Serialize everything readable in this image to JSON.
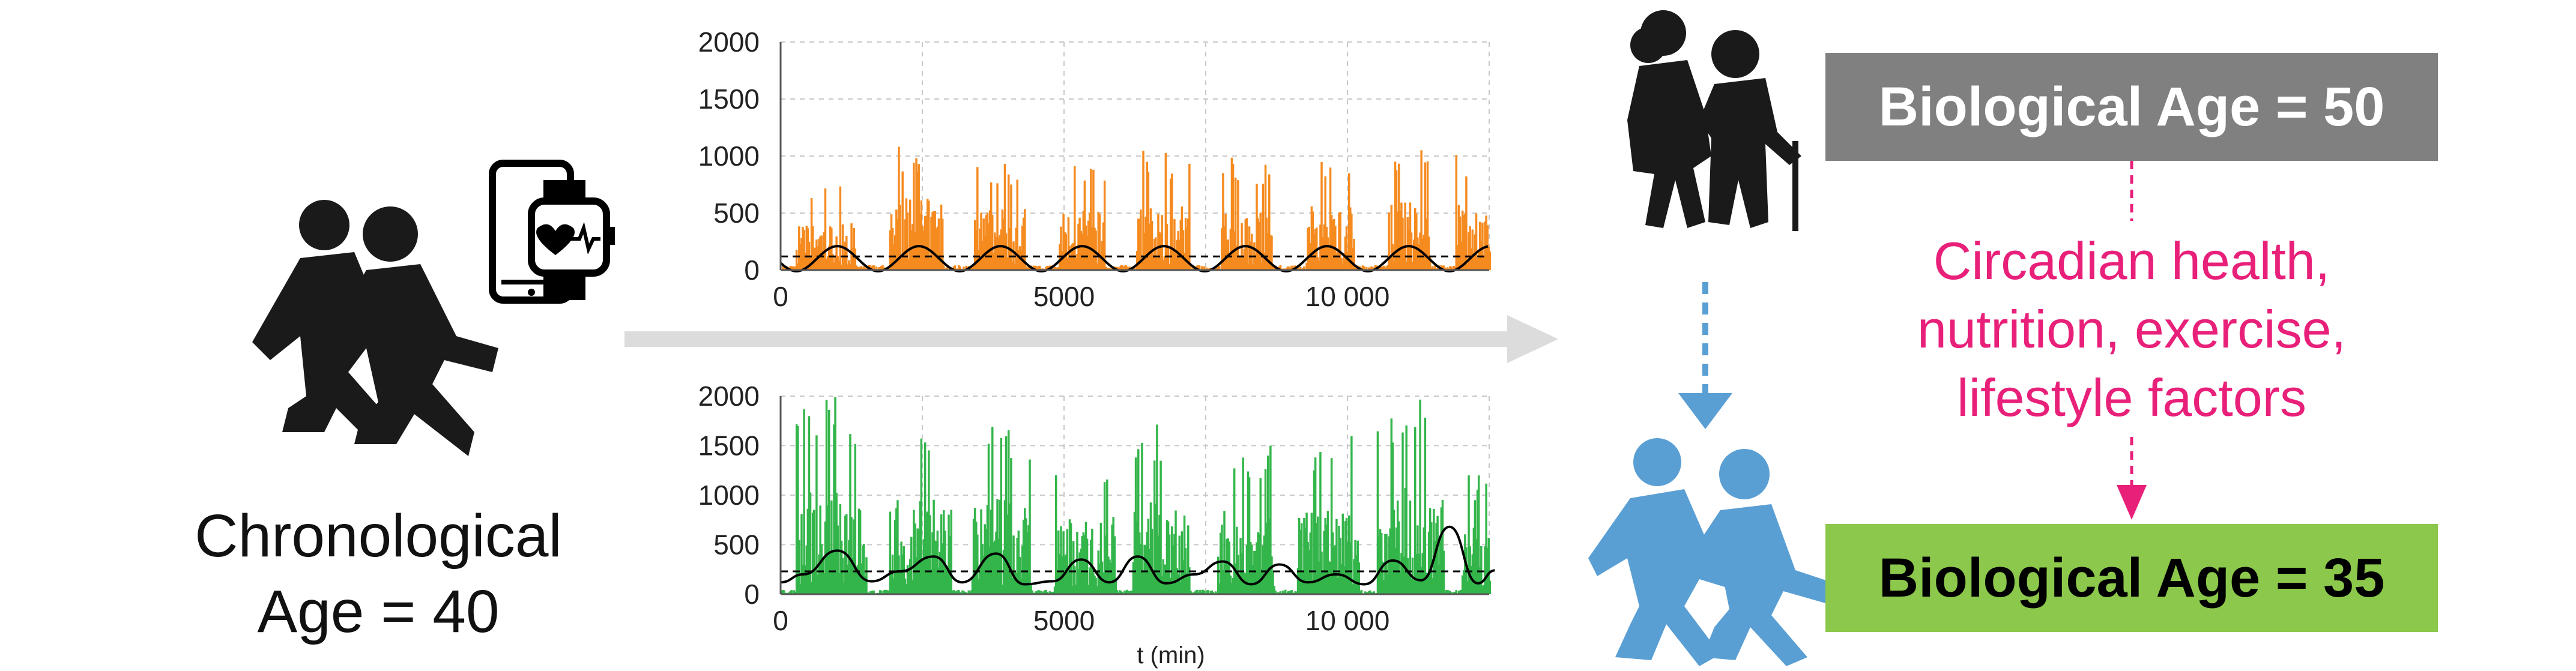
{
  "left": {
    "label_line1": "Chronological",
    "label_line2": "Age = 40"
  },
  "right": {
    "bio_age_top": "Biological Age = 50",
    "factors_line1": "Circadian health,",
    "factors_line2": "nutrition, exercise,",
    "factors_line3": "lifestyle factors",
    "bio_age_bottom": "Biological Age = 35"
  },
  "colors": {
    "orange": "#f58a1f",
    "green": "#33b54a",
    "pink": "#e8207a",
    "grey_box": "#808080",
    "green_box": "#8cc84b",
    "blue": "#5a9fd4",
    "silhouette": "#1a1a1a"
  },
  "icons": [
    "running-couple-icon",
    "phone-icon",
    "smartwatch-icon",
    "heart-icon",
    "elderly-couple-icon",
    "blue-running-couple-icon"
  ],
  "chart_data": [
    {
      "type": "bar",
      "series": [
        {
          "name": "",
          "color": "#f58a1f"
        }
      ],
      "xlim": [
        0,
        12500
      ],
      "ylim": [
        0,
        2000
      ],
      "x_ticks": [
        0,
        5000,
        10000
      ],
      "x_tick_labels": [
        "0",
        "5000",
        "10 000"
      ],
      "y_ticks": [
        0,
        500,
        1000,
        1500,
        2000
      ],
      "y_tick_labels": [
        "0",
        "500",
        "1000",
        "1500",
        "2000"
      ],
      "active_bouts": [
        {
          "start": 250,
          "end": 1300,
          "peak": 750
        },
        {
          "start": 1900,
          "end": 2850,
          "peak": 1150
        },
        {
          "start": 3400,
          "end": 4300,
          "peak": 1000
        },
        {
          "start": 4900,
          "end": 5700,
          "peak": 950
        },
        {
          "start": 6250,
          "end": 7200,
          "peak": 1050
        },
        {
          "start": 7750,
          "end": 8650,
          "peak": 1000
        },
        {
          "start": 9250,
          "end": 10100,
          "peak": 1050
        },
        {
          "start": 10700,
          "end": 11450,
          "peak": 1100
        },
        {
          "start": 11900,
          "end": 12600,
          "peak": 1050
        }
      ],
      "fit_curve": {
        "mean": 100,
        "amplitude": 110,
        "period": 1440,
        "phase_peak": 1000
      },
      "dashed_line": 120,
      "grid": true
    },
    {
      "type": "bar",
      "series": [
        {
          "name": "",
          "color": "#33b54a"
        }
      ],
      "xlim": [
        0,
        12500
      ],
      "ylim": [
        0,
        2000
      ],
      "x_ticks": [
        0,
        5000,
        10000
      ],
      "x_tick_labels": [
        "0",
        "5000",
        "10 000"
      ],
      "y_ticks": [
        0,
        500,
        1000,
        1500,
        2000
      ],
      "y_tick_labels": [
        "0",
        "500",
        "1000",
        "1500",
        "2000"
      ],
      "xlabel": "t (min)",
      "active_bouts": [
        {
          "start": 250,
          "end": 1500,
          "peak": 2000
        },
        {
          "start": 1900,
          "end": 3000,
          "peak": 1800
        },
        {
          "start": 3350,
          "end": 4400,
          "peak": 1750
        },
        {
          "start": 4800,
          "end": 5900,
          "peak": 1450
        },
        {
          "start": 6200,
          "end": 7200,
          "peak": 1750
        },
        {
          "start": 7700,
          "end": 8700,
          "peak": 1550
        },
        {
          "start": 9100,
          "end": 10200,
          "peak": 1600
        },
        {
          "start": 10500,
          "end": 11700,
          "peak": 2000
        },
        {
          "start": 12000,
          "end": 12600,
          "peak": 1250
        }
      ],
      "fit_curve_points": [
        [
          0,
          120
        ],
        [
          400,
          200
        ],
        [
          1000,
          440
        ],
        [
          1600,
          130
        ],
        [
          2100,
          230
        ],
        [
          2700,
          380
        ],
        [
          3200,
          120
        ],
        [
          3800,
          410
        ],
        [
          4300,
          100
        ],
        [
          4800,
          130
        ],
        [
          5300,
          350
        ],
        [
          5800,
          120
        ],
        [
          6300,
          380
        ],
        [
          6800,
          110
        ],
        [
          7300,
          200
        ],
        [
          7800,
          330
        ],
        [
          8300,
          100
        ],
        [
          8800,
          300
        ],
        [
          9300,
          120
        ],
        [
          9800,
          200
        ],
        [
          10300,
          100
        ],
        [
          10800,
          340
        ],
        [
          11300,
          140
        ],
        [
          11800,
          680
        ],
        [
          12300,
          110
        ],
        [
          12600,
          240
        ]
      ],
      "dashed_line": 230,
      "grid": true
    }
  ]
}
